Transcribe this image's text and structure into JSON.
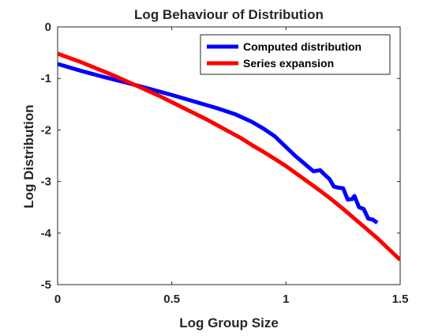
{
  "chart_data": {
    "type": "line",
    "title": "Log Behaviour of Distribution",
    "xlabel": "Log Group Size",
    "ylabel": "Log Distribution",
    "xlim": [
      0,
      1.5
    ],
    "ylim": [
      -5,
      0
    ],
    "x_ticks": [
      "0",
      "0.5",
      "1",
      "1.5"
    ],
    "y_ticks": [
      "0",
      "-1",
      "-2",
      "-3",
      "-4",
      "-5"
    ],
    "x_tick_values": [
      0,
      0.5,
      1,
      1.5
    ],
    "y_tick_values": [
      0,
      -1,
      -2,
      -3,
      -4,
      -5
    ],
    "legend_position": "top-right",
    "grid": false,
    "series": [
      {
        "name": "Computed distribution",
        "color": "#0000ff",
        "x": [
          0,
          0.1,
          0.2,
          0.3,
          0.4,
          0.5,
          0.6,
          0.7,
          0.78,
          0.85,
          0.9,
          0.95,
          1.0,
          1.04,
          1.08,
          1.12,
          1.15,
          1.17,
          1.19,
          1.21,
          1.23,
          1.25,
          1.27,
          1.29,
          1.3,
          1.32,
          1.34,
          1.36,
          1.38,
          1.4
        ],
        "y": [
          -0.72,
          -0.85,
          -0.97,
          -1.08,
          -1.2,
          -1.32,
          -1.45,
          -1.58,
          -1.7,
          -1.84,
          -1.97,
          -2.12,
          -2.33,
          -2.5,
          -2.65,
          -2.8,
          -2.78,
          -2.87,
          -2.95,
          -3.1,
          -3.12,
          -3.13,
          -3.35,
          -3.34,
          -3.28,
          -3.5,
          -3.53,
          -3.72,
          -3.74,
          -3.8
        ]
      },
      {
        "name": "Series expansion",
        "color": "#ff0000",
        "x": [
          0,
          0.05,
          0.1,
          0.15,
          0.2,
          0.25,
          0.3,
          0.35,
          0.4,
          0.45,
          0.5,
          0.55,
          0.6,
          0.65,
          0.7,
          0.75,
          0.8,
          0.85,
          0.9,
          0.95,
          1.0,
          1.05,
          1.1,
          1.15,
          1.2,
          1.25,
          1.3,
          1.35,
          1.4,
          1.45,
          1.5
        ],
        "y": [
          -0.52,
          -0.6,
          -0.68,
          -0.77,
          -0.86,
          -0.95,
          -1.05,
          -1.15,
          -1.25,
          -1.35,
          -1.46,
          -1.57,
          -1.68,
          -1.79,
          -1.91,
          -2.03,
          -2.15,
          -2.29,
          -2.42,
          -2.56,
          -2.7,
          -2.86,
          -3.02,
          -3.18,
          -3.35,
          -3.53,
          -3.72,
          -3.91,
          -4.1,
          -4.31,
          -4.52
        ]
      }
    ]
  }
}
